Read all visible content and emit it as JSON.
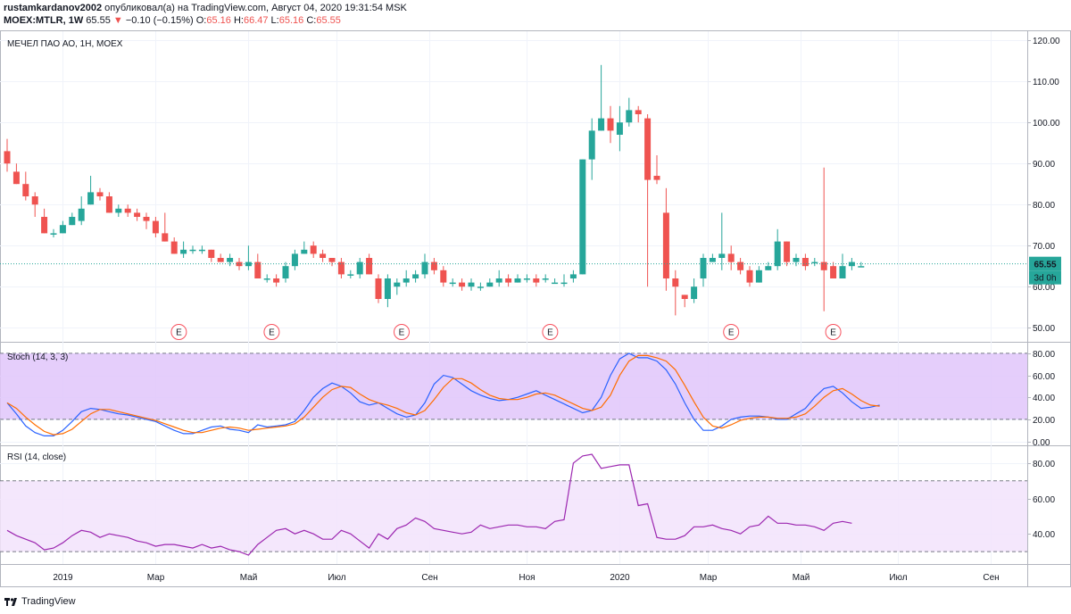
{
  "header": {
    "author": "rustamkardanov2002",
    "published": "опубликовал(а) на TradingView.com, Август 04, 2020 19:31:54 MSK",
    "symbol": "MOEX:MTLR, 1W",
    "last": "65.55",
    "change_arrow": "▼",
    "change": "−0.10 (−0.15%)",
    "o_label": "O:",
    "o_val": "65.16",
    "h_label": "H:",
    "h_val": "66.47",
    "l_label": "L:",
    "l_val": "65.16",
    "c_label": "C:",
    "c_val": "65.55"
  },
  "footer": {
    "brand": "TradingView",
    "logo_icon": "tradingview-logo-icon"
  },
  "colors": {
    "up": "#26a69a",
    "down": "#ef5350",
    "stoch_k": "#2962ff",
    "stoch_d": "#ff6d00",
    "rsi": "#9c27b0",
    "band": "#e9d5fb"
  },
  "chart_data": [
    {
      "type": "candlestick",
      "title": "МЕЧЕЛ ПАО АО, 1Н, MOEX",
      "ylim": [
        47,
        122
      ],
      "yticks": [
        "50.00",
        "60.00",
        "70.00",
        "80.00",
        "90.00",
        "100.00",
        "110.00",
        "120.00"
      ],
      "ytick_values": [
        50,
        60,
        70,
        80,
        90,
        100,
        110,
        120
      ],
      "xtick_labels": [
        "2019",
        "Мар",
        "Май",
        "Июл",
        "Сен",
        "Ноя",
        "2020",
        "Мар",
        "Май",
        "Июл",
        "Сен"
      ],
      "xtick_index": [
        6,
        16,
        26,
        35.5,
        45.5,
        56,
        66,
        75.5,
        85.5,
        96,
        106
      ],
      "price_label": "65.55",
      "price_value": 65.55,
      "countdown": "3d 0h",
      "earnings_marker": "E",
      "earnings_index": [
        18.5,
        28.5,
        42.5,
        58.5,
        78,
        89
      ],
      "candles": [
        [
          93,
          90,
          96,
          88
        ],
        [
          88,
          85,
          90,
          85
        ],
        [
          85,
          82,
          88,
          81
        ],
        [
          82,
          80,
          83,
          77
        ],
        [
          77,
          73,
          79,
          73
        ],
        [
          73,
          73,
          74,
          72
        ],
        [
          73,
          75,
          76,
          73
        ],
        [
          75,
          77,
          78,
          75
        ],
        [
          76,
          79,
          82,
          75
        ],
        [
          80,
          83,
          87,
          80
        ],
        [
          83,
          82,
          84,
          81
        ],
        [
          82,
          78,
          83,
          78
        ],
        [
          78,
          79,
          80,
          77
        ],
        [
          79,
          78,
          80,
          77
        ],
        [
          78,
          77,
          79,
          76
        ],
        [
          77,
          76,
          78,
          74
        ],
        [
          76,
          73,
          77,
          72
        ],
        [
          73,
          71,
          78,
          71
        ],
        [
          71,
          68,
          72,
          68
        ],
        [
          68,
          69,
          71,
          67
        ],
        [
          69,
          69,
          70,
          68
        ],
        [
          69,
          69,
          70,
          68
        ],
        [
          69,
          67,
          69,
          66
        ],
        [
          67,
          66,
          68,
          66
        ],
        [
          66,
          67,
          68,
          65
        ],
        [
          66,
          65,
          67,
          64
        ],
        [
          65,
          66,
          70,
          64
        ],
        [
          66,
          62,
          68,
          62
        ],
        [
          62,
          62,
          63,
          61
        ],
        [
          62,
          61,
          63,
          60
        ],
        [
          62,
          65,
          66,
          61
        ],
        [
          65,
          68,
          69,
          64
        ],
        [
          68,
          69,
          71,
          68
        ],
        [
          70,
          68,
          71,
          67
        ],
        [
          68,
          67,
          69,
          66
        ],
        [
          67,
          66,
          67,
          65
        ],
        [
          66,
          63,
          67,
          62
        ],
        [
          63,
          63,
          64,
          62
        ],
        [
          63,
          66,
          67,
          62
        ],
        [
          67,
          63,
          68,
          63
        ],
        [
          62,
          57,
          63,
          56
        ],
        [
          57,
          62,
          63,
          55
        ],
        [
          60,
          61,
          62,
          58
        ],
        [
          61,
          62,
          64,
          60
        ],
        [
          62,
          63,
          64,
          61
        ],
        [
          63,
          66,
          68,
          62
        ],
        [
          66,
          64,
          67,
          63
        ],
        [
          64,
          61,
          65,
          60
        ],
        [
          61,
          61,
          62,
          60
        ],
        [
          61,
          60,
          62,
          59
        ],
        [
          60,
          61,
          62,
          59
        ],
        [
          60,
          60,
          61,
          59
        ],
        [
          60,
          61,
          62,
          60
        ],
        [
          61,
          62,
          64,
          60
        ],
        [
          62,
          61,
          63,
          60
        ],
        [
          61,
          62,
          63,
          61
        ],
        [
          62,
          62,
          63,
          61
        ],
        [
          62,
          61,
          63,
          60
        ],
        [
          62,
          62,
          63,
          61
        ],
        [
          61,
          61,
          62,
          61
        ],
        [
          61,
          61,
          63,
          60
        ],
        [
          62,
          63,
          64,
          61
        ],
        [
          63,
          91,
          91,
          63
        ],
        [
          91,
          98,
          101,
          86
        ],
        [
          98,
          101,
          114,
          98
        ],
        [
          101,
          98,
          104,
          95
        ],
        [
          97,
          100,
          104,
          93
        ],
        [
          100,
          103,
          106,
          99
        ],
        [
          103,
          102,
          104,
          100
        ],
        [
          101,
          86,
          102,
          60
        ],
        [
          87,
          86,
          92,
          85
        ],
        [
          78,
          62,
          84,
          59
        ],
        [
          62,
          60,
          64,
          53
        ],
        [
          58,
          57,
          58,
          55
        ],
        [
          57,
          60,
          62,
          56
        ],
        [
          62,
          67,
          68,
          60
        ],
        [
          66,
          67,
          68,
          66
        ],
        [
          67,
          68,
          78,
          64
        ],
        [
          68,
          66,
          70,
          64
        ],
        [
          66,
          64,
          67,
          63
        ],
        [
          64,
          61,
          65,
          60
        ],
        [
          61,
          64,
          65,
          61
        ],
        [
          64,
          65,
          66,
          64
        ],
        [
          65,
          71,
          74,
          64
        ],
        [
          71,
          66,
          71,
          65
        ],
        [
          66,
          67,
          68,
          65
        ],
        [
          67,
          65,
          68,
          64
        ],
        [
          66,
          66,
          67,
          65
        ],
        [
          66,
          64,
          89,
          54
        ],
        [
          65,
          62,
          66,
          62
        ],
        [
          62,
          65,
          68,
          62
        ],
        [
          65,
          66,
          67,
          64
        ],
        [
          65,
          65,
          66,
          65
        ]
      ]
    },
    {
      "type": "line",
      "title": "Stoch (14, 3, 3)",
      "ylim": [
        -2,
        84
      ],
      "yticks": [
        "0.00",
        "20.00",
        "40.00",
        "60.00",
        "80.00"
      ],
      "ytick_values": [
        0,
        20,
        40,
        60,
        80
      ],
      "bands": [
        20,
        80
      ],
      "series": [
        {
          "key": "k",
          "values": [
            35,
            25,
            14,
            8,
            5,
            5,
            10,
            18,
            27,
            30,
            29,
            27,
            25,
            24,
            22,
            20,
            18,
            14,
            10,
            7,
            7,
            10,
            13,
            14,
            11,
            10,
            8,
            15,
            13,
            14,
            15,
            18,
            28,
            40,
            48,
            53,
            50,
            44,
            36,
            33,
            35,
            30,
            25,
            22,
            24,
            35,
            52,
            60,
            58,
            52,
            46,
            42,
            39,
            37,
            38,
            40,
            43,
            46,
            42,
            38,
            34,
            30,
            26,
            28,
            40,
            60,
            75,
            80,
            76,
            76,
            73,
            65,
            52,
            35,
            20,
            10,
            10,
            14,
            20,
            22,
            23,
            23,
            22,
            20,
            20,
            25,
            30,
            40,
            48,
            50,
            44,
            36,
            30,
            31,
            33
          ]
        },
        {
          "key": "d",
          "values": [
            35,
            30,
            22,
            15,
            9,
            6,
            7,
            11,
            18,
            25,
            29,
            29,
            27,
            25,
            23,
            21,
            19,
            16,
            13,
            10,
            8,
            8,
            10,
            12,
            13,
            12,
            10,
            11,
            12,
            13,
            14,
            16,
            22,
            31,
            40,
            47,
            50,
            49,
            43,
            38,
            35,
            33,
            30,
            26,
            24,
            28,
            38,
            49,
            57,
            57,
            53,
            47,
            42,
            39,
            38,
            38,
            40,
            43,
            44,
            42,
            38,
            34,
            30,
            28,
            31,
            42,
            60,
            73,
            78,
            78,
            76,
            73,
            65,
            51,
            36,
            22,
            14,
            12,
            15,
            19,
            21,
            22,
            22,
            21,
            21,
            22,
            25,
            32,
            40,
            46,
            48,
            43,
            37,
            33,
            32
          ]
        }
      ]
    },
    {
      "type": "line",
      "title": "RSI (14, close)",
      "ylim": [
        25,
        88
      ],
      "yticks": [
        "40.00",
        "60.00",
        "80.00"
      ],
      "ytick_values": [
        40,
        60,
        80
      ],
      "bands": [
        30,
        70
      ],
      "series": [
        {
          "key": "rsi",
          "values": [
            42,
            39,
            37,
            35,
            31,
            32,
            35,
            39,
            42,
            41,
            38,
            40,
            39,
            38,
            36,
            35,
            33,
            34,
            34,
            33,
            32,
            34,
            32,
            33,
            31,
            30,
            28,
            34,
            38,
            42,
            43,
            40,
            42,
            40,
            37,
            37,
            42,
            40,
            36,
            32,
            40,
            37,
            43,
            45,
            49,
            47,
            43,
            42,
            41,
            40,
            41,
            45,
            43,
            44,
            45,
            45,
            44,
            44,
            43,
            47,
            48,
            80,
            84,
            85,
            77,
            78,
            79,
            79,
            56,
            57,
            38,
            37,
            37,
            39,
            44,
            44,
            45,
            43,
            42,
            40,
            44,
            45,
            50,
            46,
            46,
            45,
            45,
            44,
            42,
            46,
            47,
            46
          ]
        }
      ]
    }
  ]
}
